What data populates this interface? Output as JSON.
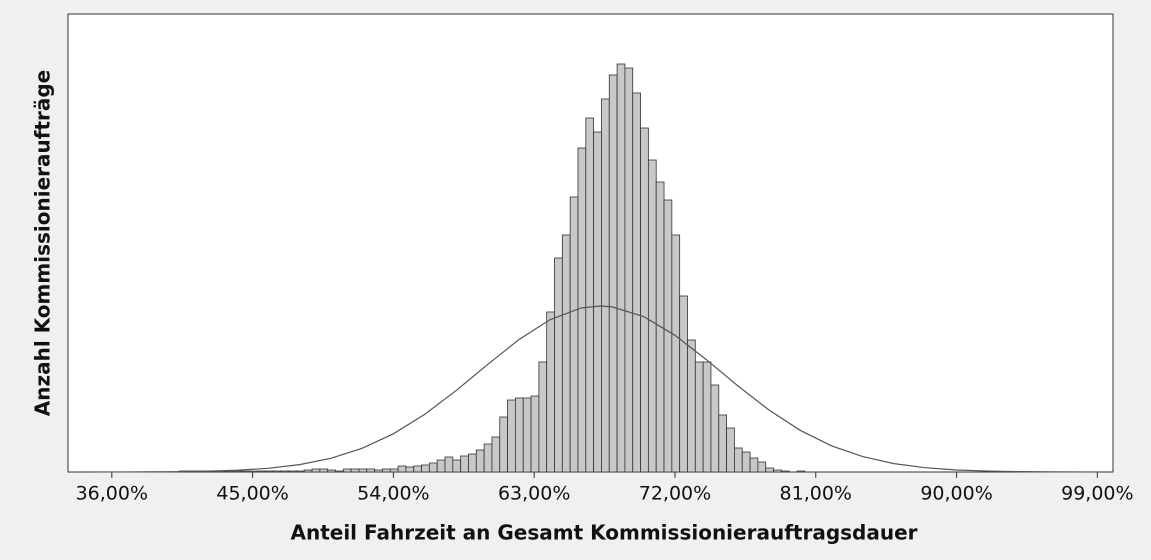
{
  "chart_data": {
    "type": "histogram",
    "xlabel": "Anteil Fahrzeit an Gesamt Kommissionierauftragsdauer",
    "ylabel": "Anzahl Kommissionieraufträge",
    "bins": [
      40.3,
      40.8,
      41.3,
      41.8,
      42.3,
      42.8,
      43.3,
      43.8,
      44.3,
      44.8,
      45.3,
      45.8,
      46.3,
      46.8,
      47.3,
      47.8,
      48.3,
      48.8,
      49.3,
      49.8,
      50.3,
      50.8,
      51.3,
      51.8,
      52.3,
      52.8,
      53.3,
      53.8,
      54.3,
      54.8,
      55.3,
      55.8,
      56.3,
      56.8,
      57.3,
      57.8,
      58.3,
      58.8,
      59.3,
      59.8,
      60.3,
      60.8,
      61.3,
      61.8,
      62.3,
      62.8,
      63.3,
      63.8,
      64.3,
      64.8,
      65.3,
      65.8,
      66.3,
      66.8,
      67.3,
      67.8,
      68.3,
      68.8,
      69.3,
      69.8,
      70.3,
      70.8,
      71.3,
      71.8,
      72.3,
      72.8,
      73.3,
      73.8,
      74.3,
      74.8,
      75.3,
      75.8,
      76.3,
      76.8,
      77.3,
      77.8,
      78.3,
      78.8,
      79.3,
      79.8,
      80.3,
      80.8
    ],
    "values": [
      1,
      1,
      1,
      1,
      1,
      1,
      1,
      1,
      1,
      1,
      1,
      1,
      1,
      1,
      1,
      1,
      2,
      3,
      3,
      2,
      1,
      3,
      3,
      3,
      3,
      2,
      3,
      3,
      6,
      5,
      6,
      7,
      9,
      12,
      15,
      12,
      16,
      18,
      22,
      28,
      35,
      55,
      72,
      74,
      74,
      76,
      110,
      160,
      214,
      237,
      275,
      324,
      354,
      340,
      373,
      397,
      408,
      404,
      379,
      344,
      312,
      290,
      272,
      237,
      176,
      132,
      110,
      110,
      87,
      57,
      44,
      24,
      20,
      14,
      10,
      4,
      2,
      1,
      0,
      1,
      0
    ],
    "color": "#c8c8c8",
    "curve": {
      "color": "#555555",
      "x": [
        34,
        36,
        38,
        40,
        42,
        44,
        46,
        48,
        50,
        52,
        54,
        56,
        58,
        60,
        62,
        64,
        66,
        67.2,
        68,
        70,
        72,
        74,
        76,
        78,
        80,
        82,
        84,
        86,
        88,
        90,
        92,
        94,
        96,
        98,
        100
      ],
      "values": [
        0.02,
        0.05,
        0.12,
        0.32,
        0.79,
        1.8,
        3.7,
        7.4,
        13.7,
        23.7,
        38.2,
        57.6,
        81.3,
        107.2,
        132.1,
        152.2,
        164,
        166,
        165.1,
        155.4,
        136.7,
        112.4,
        86.4,
        62.1,
        41.7,
        26.2,
        15.4,
        8.4,
        4.3,
        2.0,
        0.93,
        0.39,
        0.15,
        0.06,
        0.02
      ]
    },
    "xlim": [
      33.2,
      100
    ],
    "ylim": [
      0,
      458
    ],
    "xticks": [
      {
        "value": 36,
        "label": "36,00%"
      },
      {
        "value": 45,
        "label": "45,00%"
      },
      {
        "value": 54,
        "label": "54,00%"
      },
      {
        "value": 63,
        "label": "63,00%"
      },
      {
        "value": 72,
        "label": "72,00%"
      },
      {
        "value": 81,
        "label": "81,00%"
      },
      {
        "value": 90,
        "label": "90,00%"
      },
      {
        "value": 99,
        "label": "99,00%"
      }
    ]
  }
}
